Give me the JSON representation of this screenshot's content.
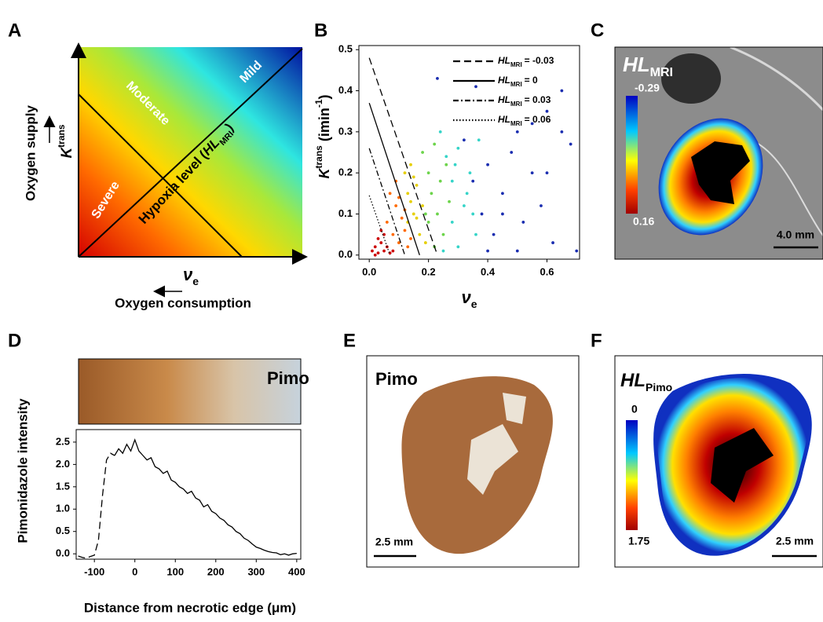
{
  "panels": [
    {
      "label": "A",
      "mild": "Mild",
      "moderate": "Moderate",
      "severe": "Severe",
      "line_label": {
        "text": "Hypoxia level (",
        "italic": "HL",
        "sub": "MRI",
        "close": ")"
      },
      "y_symbol": {
        "italic": "K",
        "sup": "trans"
      },
      "y_label": "Oxygen supply",
      "x_symbol": {
        "italic": "ν",
        "sub": "e"
      },
      "x_label": "Oxygen consumption"
    },
    {
      "label": "C",
      "title": {
        "italic": "HL",
        "sub": "MRI"
      },
      "colorbar": [
        -0.29,
        0.16
      ],
      "scale_bar": "4.0 mm"
    },
    {
      "label": "E",
      "title": "Pimo",
      "scale_bar": "2.5 mm"
    },
    {
      "label": "F",
      "title": {
        "italic": "HL",
        "sub": "Pimo"
      },
      "colorbar": [
        0,
        1.75
      ],
      "scale_bar": "2.5 mm"
    }
  ],
  "chart_data": [
    {
      "type": "scatter",
      "panel_label": "B",
      "xlabel": {
        "italic": "ν",
        "sub": "e"
      },
      "ylabel": {
        "italic": "K",
        "sup": "trans",
        "unit": " (imin",
        "unit_sup": "-1",
        "close": ")"
      },
      "xlim": [
        -0.035,
        0.71
      ],
      "ylim": [
        -0.01,
        0.51
      ],
      "xticks": [
        {
          "value": 0,
          "label": "0.0"
        },
        0.2,
        0.4,
        0.6
      ],
      "yticks": [
        {
          "value": 0,
          "label": "0.0"
        },
        0.1,
        0.2,
        0.3,
        0.4,
        0.5
      ],
      "legend_symbol": {
        "italic": "HL",
        "sub": "MRI"
      },
      "legend_position": "upper right",
      "reference_lines": [
        {
          "name": "= -0.03",
          "style": "dashed",
          "color": "#000000",
          "x": [
            0,
            0.23
          ],
          "values": [
            0.48,
            0
          ]
        },
        {
          "name": "= 0",
          "style": "solid",
          "color": "#000000",
          "x": [
            0,
            0.17
          ],
          "values": [
            0.37,
            0
          ]
        },
        {
          "name": "= 0.03",
          "style": "dashdot",
          "color": "#000000",
          "x": [
            0,
            0.12
          ],
          "values": [
            0.26,
            0
          ]
        },
        {
          "name": "= 0.06",
          "style": "dotted",
          "color": "#000000",
          "x": [
            0,
            0.07
          ],
          "values": [
            0.145,
            0
          ]
        }
      ],
      "series": [
        {
          "color": "#cc0000",
          "x": [
            0.01,
            0.02,
            0.03,
            0.04,
            0.05,
            0.06,
            0.07,
            0.03,
            0.05,
            0.08,
            0.02,
            0.04
          ],
          "values": [
            0.01,
            0.02,
            0.005,
            0.03,
            0.01,
            0.02,
            0.005,
            0.04,
            0.05,
            0.01,
            0.0,
            0.06
          ]
        },
        {
          "color": "#ff6a00",
          "x": [
            0.06,
            0.08,
            0.09,
            0.1,
            0.11,
            0.12,
            0.13,
            0.07,
            0.09,
            0.1,
            0.12,
            0.14
          ],
          "values": [
            0.08,
            0.05,
            0.12,
            0.03,
            0.09,
            0.06,
            0.02,
            0.15,
            0.18,
            0.14,
            0.11,
            0.04
          ]
        },
        {
          "color": "#e6cf00",
          "x": [
            0.12,
            0.13,
            0.14,
            0.15,
            0.16,
            0.17,
            0.18,
            0.13,
            0.15,
            0.19,
            0.14,
            0.16
          ],
          "values": [
            0.2,
            0.15,
            0.22,
            0.1,
            0.17,
            0.05,
            0.12,
            0.08,
            0.19,
            0.03,
            0.13,
            0.09
          ]
        },
        {
          "color": "#6cd44a",
          "x": [
            0.18,
            0.2,
            0.21,
            0.22,
            0.23,
            0.24,
            0.25,
            0.26,
            0.19,
            0.22,
            0.27,
            0.2
          ],
          "values": [
            0.25,
            0.2,
            0.15,
            0.27,
            0.1,
            0.18,
            0.05,
            0.22,
            0.1,
            0.02,
            0.13,
            0.08
          ]
        },
        {
          "color": "#35d4c8",
          "x": [
            0.24,
            0.26,
            0.28,
            0.3,
            0.32,
            0.34,
            0.36,
            0.28,
            0.3,
            0.33,
            0.25,
            0.35,
            0.37,
            0.29
          ],
          "values": [
            0.3,
            0.24,
            0.18,
            0.26,
            0.12,
            0.2,
            0.05,
            0.08,
            0.02,
            0.15,
            0.01,
            0.1,
            0.28,
            0.22
          ]
        },
        {
          "color": "#1a2db0",
          "x": [
            0.32,
            0.35,
            0.38,
            0.4,
            0.42,
            0.45,
            0.48,
            0.5,
            0.52,
            0.55,
            0.58,
            0.6,
            0.62,
            0.65,
            0.68,
            0.7,
            0.4,
            0.45,
            0.5,
            0.55,
            0.6,
            0.65,
            0.23,
            0.36
          ],
          "values": [
            0.28,
            0.18,
            0.1,
            0.22,
            0.05,
            0.15,
            0.25,
            0.3,
            0.08,
            0.2,
            0.12,
            0.35,
            0.03,
            0.4,
            0.27,
            0.01,
            0.01,
            0.1,
            0.01,
            0.32,
            0.2,
            0.3,
            0.43,
            0.41
          ]
        }
      ]
    },
    {
      "type": "line",
      "panel_label": "D",
      "inset_label": "Pimo",
      "xlabel": "Distance from necrotic edge (μm)",
      "ylabel": "Pimonidazole intensity",
      "xlim": [
        -145,
        410
      ],
      "ylim": [
        -0.12,
        2.78
      ],
      "xticks": [
        -100,
        0,
        100,
        200,
        300,
        400
      ],
      "yticks": [
        {
          "value": 0,
          "label": "0.0"
        },
        0.5,
        {
          "value": 1,
          "label": "1.0"
        },
        1.5,
        {
          "value": 2,
          "label": "2.0"
        },
        2.5
      ],
      "series": [
        {
          "style": "dashed",
          "color": "#000000",
          "x": [
            -140,
            -130,
            -120,
            -110,
            -100,
            -90,
            -80,
            -70,
            -60,
            -50
          ],
          "values": [
            -0.05,
            -0.08,
            -0.1,
            -0.06,
            -0.03,
            0.3,
            1.3,
            2.1,
            2.25,
            2.2
          ]
        },
        {
          "style": "solid",
          "color": "#000000",
          "x": [
            -50,
            -40,
            -30,
            -20,
            -10,
            0,
            10,
            20,
            30,
            40,
            50,
            60,
            70,
            80,
            90,
            100,
            110,
            120,
            130,
            140,
            150,
            160,
            170,
            180,
            190,
            200,
            210,
            220,
            230,
            240,
            250,
            260,
            270,
            280,
            290,
            300,
            310,
            320,
            330,
            340,
            350,
            360,
            370,
            380,
            390,
            400
          ],
          "values": [
            2.2,
            2.35,
            2.25,
            2.45,
            2.3,
            2.55,
            2.3,
            2.2,
            2.1,
            2.15,
            1.95,
            1.9,
            1.8,
            1.85,
            1.65,
            1.6,
            1.5,
            1.45,
            1.35,
            1.4,
            1.25,
            1.2,
            1.05,
            1.1,
            0.95,
            0.9,
            0.8,
            0.75,
            0.65,
            0.6,
            0.5,
            0.45,
            0.35,
            0.3,
            0.22,
            0.15,
            0.12,
            0.08,
            0.05,
            0.03,
            0.02,
            -0.02,
            0.0,
            -0.03,
            0.0,
            0.01
          ]
        }
      ]
    }
  ]
}
